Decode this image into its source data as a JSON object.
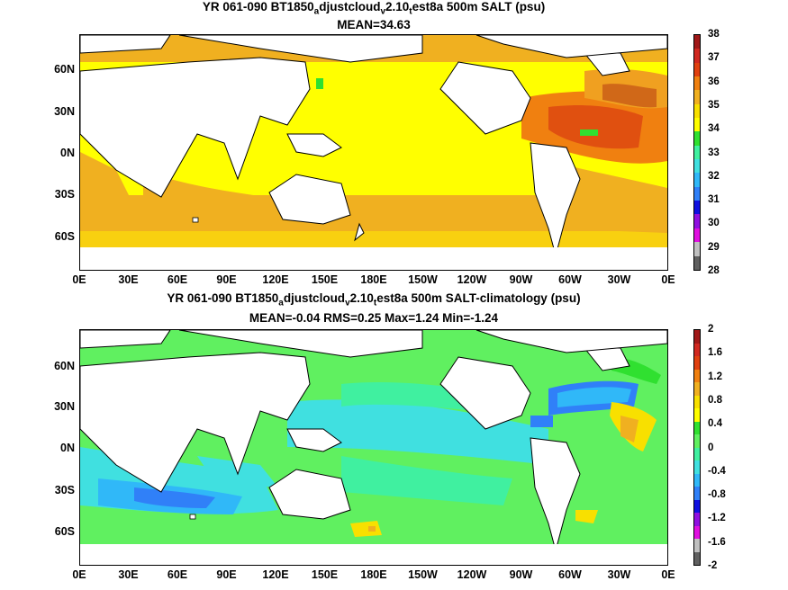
{
  "top": {
    "title_prefix": "YR 061-090 BT1850",
    "title_sub1": "a",
    "title_mid1": "djustcloud",
    "title_sub2": "v",
    "title_mid2": "2.10",
    "title_sub3": "t",
    "title_suffix": "est8a 500m SALT (psu)",
    "stats": "MEAN=34.63",
    "colorbar_labels": [
      "38",
      "37",
      "36",
      "35",
      "34",
      "33",
      "32",
      "31",
      "30",
      "29",
      "28"
    ],
    "colorbar_colors": [
      "#a01818",
      "#d02820",
      "#e04010",
      "#f08010",
      "#f0b020",
      "#f8e000",
      "#ffff00",
      "#30e030",
      "#40f0a0",
      "#40e0e0",
      "#30b8f8",
      "#3080f8",
      "#1010e0",
      "#9010e0",
      "#e010e0",
      "#c0c0c0",
      "#606060"
    ],
    "field_colors": {
      "ocean": "#ffff00",
      "south": "#f8d010",
      "subtrop": "#f0b020",
      "atl": "#f08010",
      "atl_core": "#e05010",
      "med": "#a01818",
      "arctic": "#f0a020",
      "fresh": "#30e030"
    }
  },
  "bottom": {
    "title_prefix": "YR 061-090 BT1850",
    "title_sub1": "a",
    "title_mid1": "djustcloud",
    "title_sub2": "v",
    "title_mid2": "2.10",
    "title_sub3": "t",
    "title_suffix": "est8a 500m SALT-climatology (psu)",
    "stats": "MEAN=-0.04   RMS=0.25   Max=1.24   Min=-1.24",
    "colorbar_labels": [
      "2",
      "1.6",
      "1.2",
      "0.8",
      "0.4",
      "0",
      "-0.4",
      "-0.8",
      "-1.2",
      "-1.6",
      "-2"
    ],
    "colorbar_colors": [
      "#a01818",
      "#d02820",
      "#e04010",
      "#f08010",
      "#f0b020",
      "#f8e000",
      "#ffff00",
      "#30e030",
      "#60f060",
      "#40f0a0",
      "#40e0e0",
      "#30b8f8",
      "#3080f8",
      "#1010e0",
      "#9010e0",
      "#e010e0",
      "#c0c0c0",
      "#606060"
    ],
    "field_colors": {
      "ocean": "#60f060",
      "cyan": "#40e0e0",
      "teal": "#40f0a0",
      "blue": "#30b8f8",
      "deep": "#3080f8",
      "yellow": "#f8e000",
      "orange": "#f0b020"
    }
  },
  "lat_labels": [
    "60N",
    "30N",
    "0N",
    "30S",
    "60S"
  ],
  "lon_labels": [
    "0E",
    "30E",
    "60E",
    "90E",
    "120E",
    "150E",
    "180E",
    "150W",
    "120W",
    "90W",
    "60W",
    "30W",
    "0E"
  ]
}
